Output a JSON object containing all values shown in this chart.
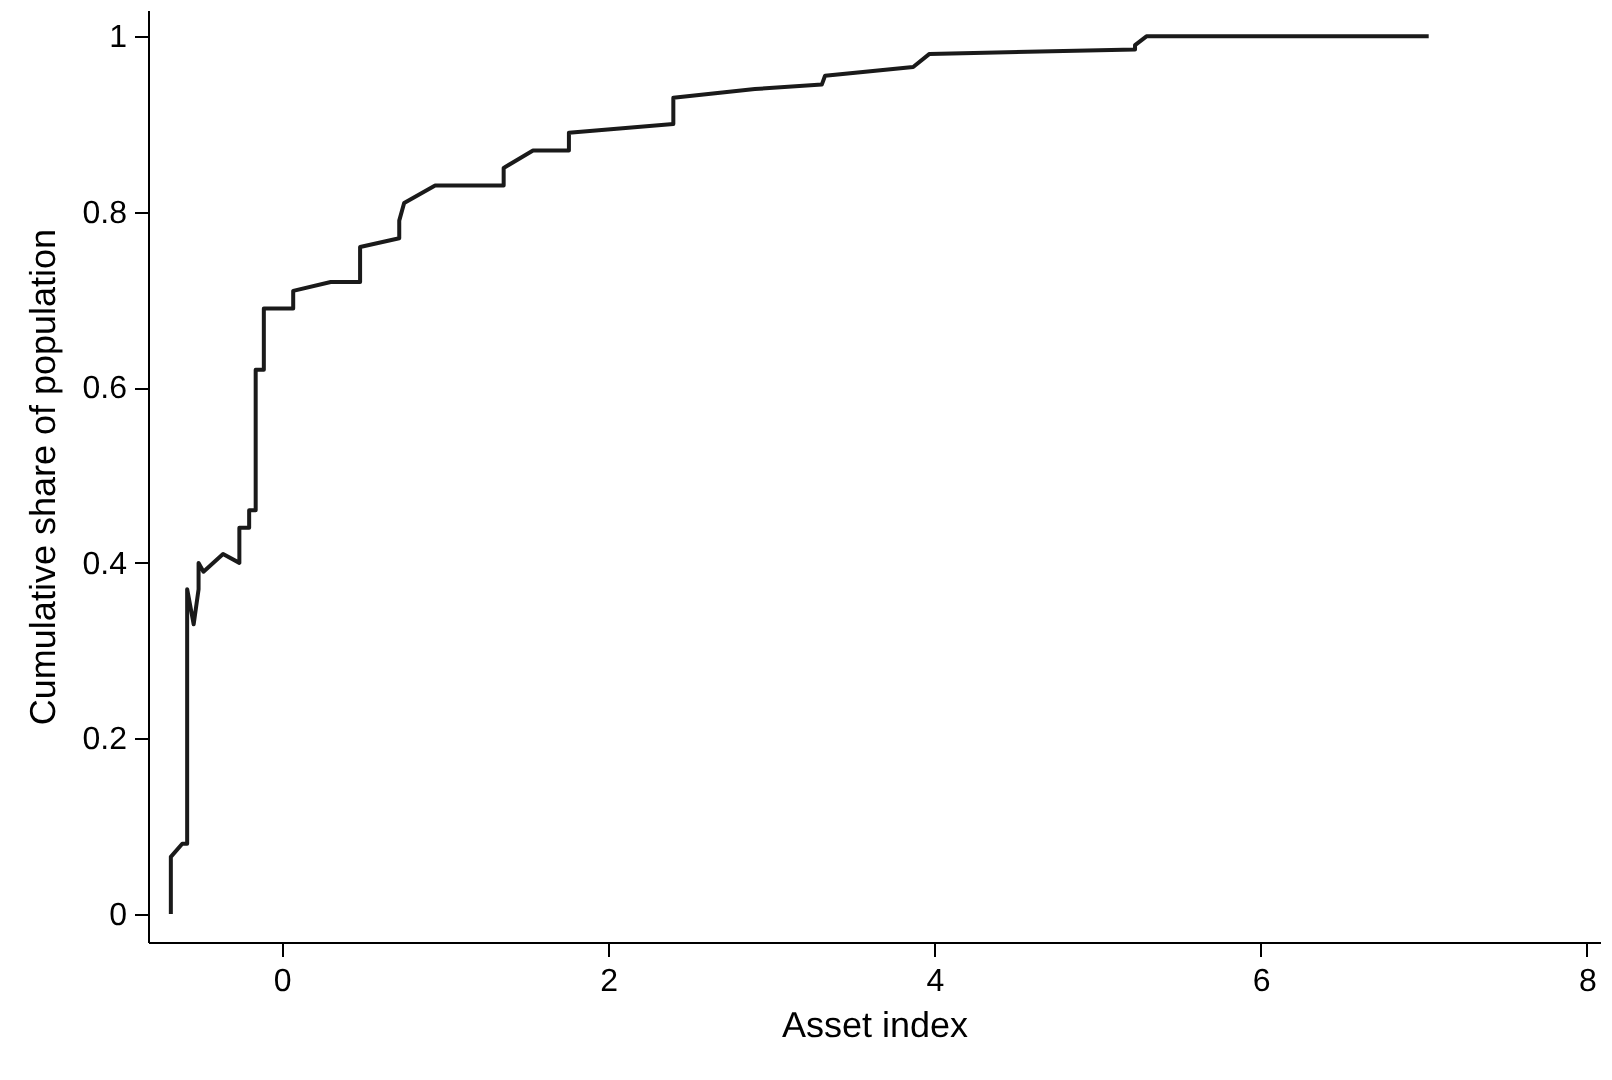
{
  "chart_data": {
    "type": "line",
    "xlabel": "Asset index",
    "ylabel": "Cumulative share of population",
    "xlim": [
      -0.82,
      8.08
    ],
    "ylim": [
      -0.032,
      1.03
    ],
    "xticks": [
      0,
      2,
      4,
      6,
      8
    ],
    "yticks": [
      0,
      0.2,
      0.4,
      0.6,
      0.8,
      1
    ],
    "grid": false,
    "marker": "none",
    "line_style": "solid",
    "series": [
      {
        "color": "#1a1a1a",
        "x": [
          -0.68,
          -0.68,
          -0.61,
          -0.58,
          -0.58,
          -0.54,
          -0.51,
          -0.51,
          -0.48,
          -0.36,
          -0.26,
          -0.26,
          -0.2,
          -0.2,
          -0.16,
          -0.16,
          -0.11,
          -0.11,
          0.07,
          0.07,
          0.3,
          0.48,
          0.48,
          0.72,
          0.72,
          0.75,
          0.94,
          1.36,
          1.36,
          1.54,
          1.76,
          1.76,
          2.4,
          2.4,
          2.9,
          3.31,
          3.33,
          3.87,
          3.97,
          5.23,
          5.23,
          5.3,
          7.03
        ],
        "values": [
          0,
          0.065,
          0.08,
          0.08,
          0.37,
          0.33,
          0.37,
          0.4,
          0.39,
          0.41,
          0.4,
          0.44,
          0.44,
          0.46,
          0.46,
          0.62,
          0.62,
          0.69,
          0.69,
          0.71,
          0.72,
          0.72,
          0.76,
          0.77,
          0.79,
          0.81,
          0.83,
          0.83,
          0.85,
          0.87,
          0.87,
          0.89,
          0.9,
          0.93,
          0.94,
          0.945,
          0.955,
          0.965,
          0.98,
          0.985,
          0.99,
          1.0,
          1.0
        ]
      }
    ]
  }
}
